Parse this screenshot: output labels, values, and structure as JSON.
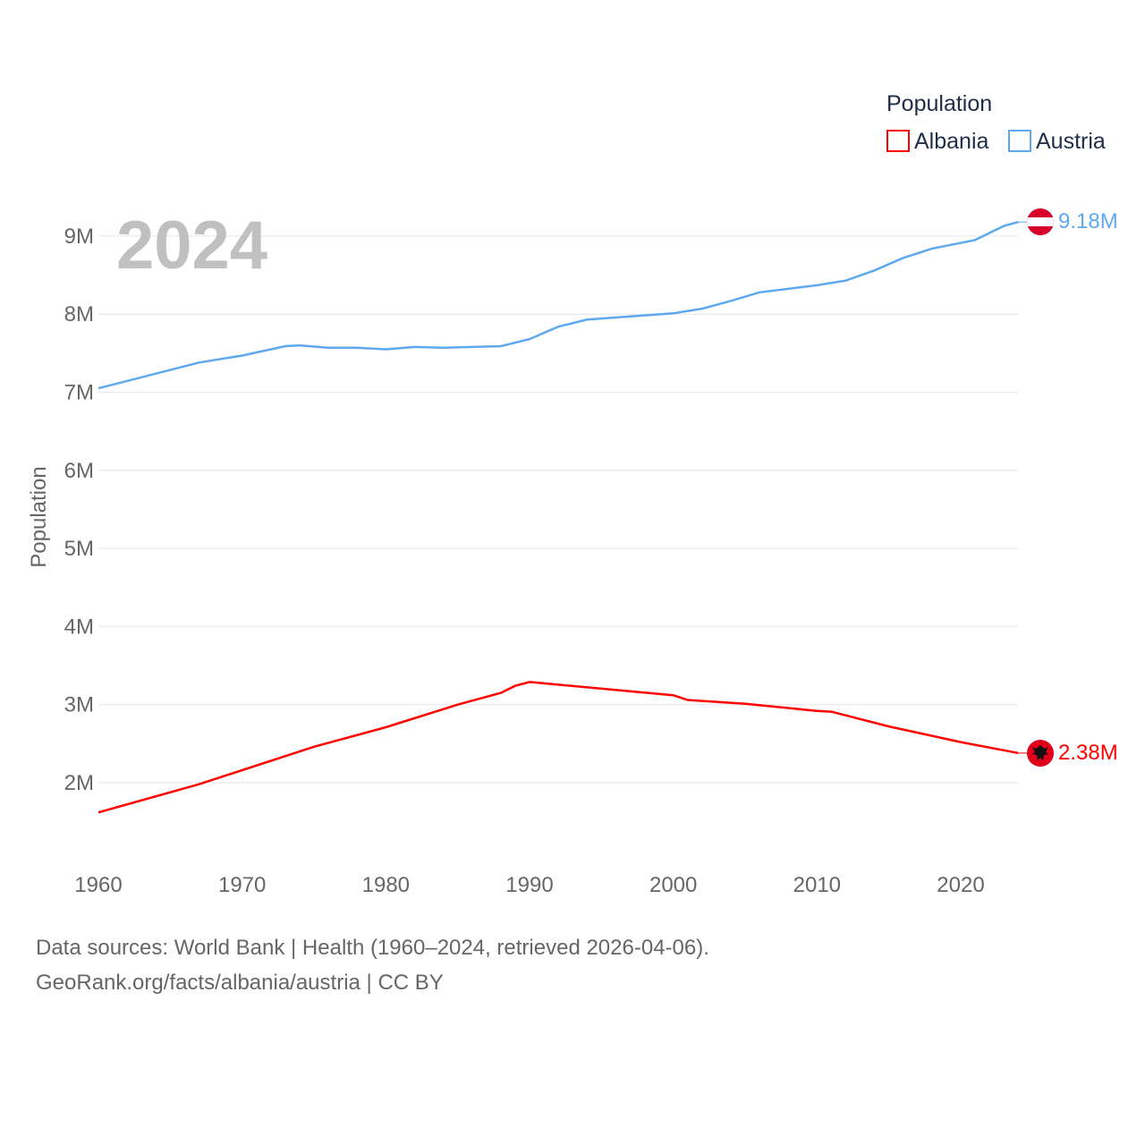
{
  "chart_data": {
    "type": "line",
    "title": "",
    "year_label": "2024",
    "ylabel": "Population",
    "xlabel": "",
    "xlim": [
      1960,
      2024
    ],
    "ylim": [
      1.2,
      9.3
    ],
    "x_ticks": [
      1960,
      1970,
      1980,
      1990,
      2000,
      2010,
      2020
    ],
    "x_tick_labels": [
      "1960",
      "1970",
      "1980",
      "1990",
      "2000",
      "2010",
      "2020"
    ],
    "y_ticks": [
      2,
      3,
      4,
      5,
      6,
      7,
      8,
      9
    ],
    "y_tick_labels": [
      "2M",
      "3M",
      "4M",
      "5M",
      "6M",
      "7M",
      "8M",
      "9M"
    ],
    "grid": true,
    "legend": {
      "title": "Population",
      "placement": "top-right"
    },
    "series": [
      {
        "name": "Albania",
        "color": "#ff0000",
        "end_label": "2.38M",
        "flag": "albania-flag",
        "points": [
          [
            1960,
            1.62
          ],
          [
            1967,
            1.98
          ],
          [
            1970,
            2.16
          ],
          [
            1975,
            2.46
          ],
          [
            1980,
            2.71
          ],
          [
            1985,
            3.0
          ],
          [
            1988,
            3.15
          ],
          [
            1989,
            3.24
          ],
          [
            1990,
            3.29
          ],
          [
            2000,
            3.12
          ],
          [
            2001,
            3.06
          ],
          [
            2005,
            3.01
          ],
          [
            2010,
            2.92
          ],
          [
            2011,
            2.91
          ],
          [
            2015,
            2.72
          ],
          [
            2020,
            2.52
          ],
          [
            2024,
            2.38
          ]
        ]
      },
      {
        "name": "Austria",
        "color": "#5ea8f0",
        "end_label": "9.18M",
        "flag": "austria-flag",
        "points": [
          [
            1960,
            7.05
          ],
          [
            1967,
            7.38
          ],
          [
            1970,
            7.47
          ],
          [
            1973,
            7.59
          ],
          [
            1974,
            7.6
          ],
          [
            1976,
            7.57
          ],
          [
            1978,
            7.57
          ],
          [
            1980,
            7.55
          ],
          [
            1982,
            7.58
          ],
          [
            1984,
            7.57
          ],
          [
            1988,
            7.59
          ],
          [
            1990,
            7.68
          ],
          [
            1992,
            7.84
          ],
          [
            1994,
            7.93
          ],
          [
            2000,
            8.01
          ],
          [
            2002,
            8.07
          ],
          [
            2004,
            8.17
          ],
          [
            2006,
            8.28
          ],
          [
            2010,
            8.37
          ],
          [
            2012,
            8.43
          ],
          [
            2014,
            8.56
          ],
          [
            2016,
            8.72
          ],
          [
            2018,
            8.84
          ],
          [
            2021,
            8.95
          ],
          [
            2023,
            9.13
          ],
          [
            2024,
            9.18
          ]
        ]
      }
    ]
  },
  "footer": {
    "line1": "Data sources: World Bank | Health (1960–2024, retrieved 2026-04-06).",
    "line2": "GeoRank.org/facts/albania/austria | CC BY"
  }
}
